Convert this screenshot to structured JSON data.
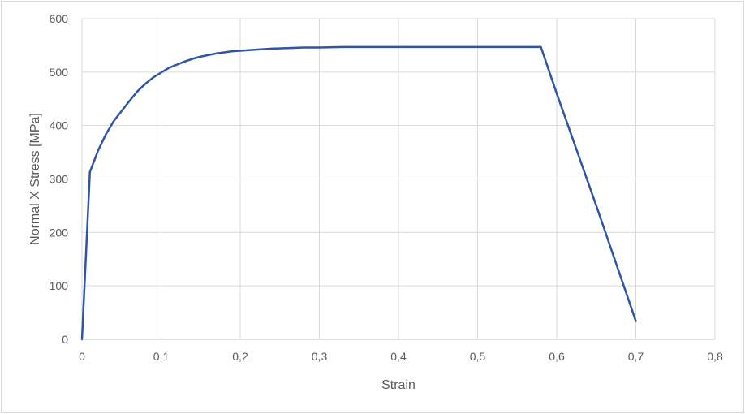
{
  "chart_data": {
    "type": "line",
    "xlabel": "Strain",
    "ylabel": "Normal X Stress [MPa]",
    "xlim": [
      0,
      0.8
    ],
    "ylim": [
      0,
      600
    ],
    "x_ticks": [
      "0",
      "0,1",
      "0,2",
      "0,3",
      "0,4",
      "0,5",
      "0,6",
      "0,7",
      "0,8"
    ],
    "y_ticks": [
      "0",
      "100",
      "200",
      "300",
      "400",
      "500",
      "600"
    ],
    "grid": true,
    "legend": "none",
    "series": [
      {
        "color": "#2f55a4",
        "x": [
          0,
          0.01,
          0.02,
          0.03,
          0.04,
          0.05,
          0.06,
          0.07,
          0.08,
          0.09,
          0.1,
          0.11,
          0.12,
          0.13,
          0.14,
          0.15,
          0.16,
          0.17,
          0.18,
          0.19,
          0.2,
          0.22,
          0.24,
          0.26,
          0.28,
          0.3,
          0.33,
          0.4,
          0.5,
          0.58,
          0.6,
          0.65,
          0.7
        ],
        "y": [
          0,
          313,
          352,
          383,
          408,
          427,
          446,
          464,
          478,
          490,
          499,
          508,
          514,
          520,
          525,
          529,
          532,
          535,
          537,
          539,
          540,
          542,
          544,
          545,
          546,
          546,
          547,
          547,
          547,
          547,
          460,
          250,
          34
        ]
      }
    ]
  }
}
